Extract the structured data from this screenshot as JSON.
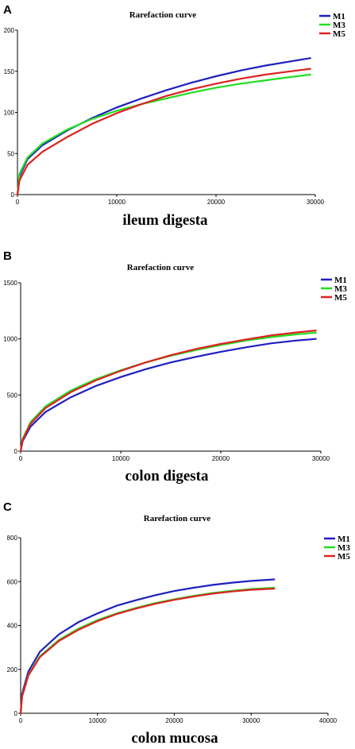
{
  "colors": {
    "M1": "#1f1fbf",
    "M3": "#22dd22",
    "M5": "#dd2222"
  },
  "chart_data": [
    {
      "type": "line",
      "panel": "A",
      "title": "Rarefaction curve",
      "xlabel": "ileum digesta",
      "ylabel": "",
      "xlim": [
        0,
        30000
      ],
      "ylim": [
        0,
        200
      ],
      "xticks": [
        0,
        10000,
        20000,
        30000
      ],
      "yticks": [
        0,
        50,
        100,
        150,
        200
      ],
      "legend_position": "top-right",
      "series": [
        {
          "name": "M1",
          "x": [
            0,
            200,
            1000,
            2500,
            5000,
            7500,
            10000,
            12500,
            15000,
            17500,
            20000,
            22500,
            25000,
            27500,
            29500
          ],
          "values": [
            0,
            22,
            43,
            60,
            78,
            93,
            106,
            117,
            127,
            136,
            144,
            151,
            157,
            162,
            166
          ]
        },
        {
          "name": "M3",
          "x": [
            0,
            200,
            1000,
            2500,
            5000,
            7500,
            10000,
            12500,
            15000,
            17500,
            20000,
            22500,
            25000,
            27500,
            29500
          ],
          "values": [
            0,
            25,
            45,
            62,
            79,
            92,
            102,
            110,
            117,
            124,
            130,
            135,
            139,
            143,
            146
          ]
        },
        {
          "name": "M5",
          "x": [
            0,
            200,
            1000,
            2500,
            5000,
            7500,
            10000,
            12500,
            15000,
            17500,
            20000,
            22500,
            25000,
            27500,
            29500
          ],
          "values": [
            0,
            17,
            36,
            52,
            70,
            86,
            99,
            110,
            120,
            128,
            135,
            141,
            146,
            150,
            153
          ]
        }
      ]
    },
    {
      "type": "line",
      "panel": "B",
      "title": "Rarefaction curve",
      "xlabel": "colon digesta",
      "ylabel": "",
      "xlim": [
        0,
        30000
      ],
      "ylim": [
        0,
        1500
      ],
      "xticks": [
        0,
        10000,
        20000,
        30000
      ],
      "yticks": [
        0,
        500,
        1000,
        1500
      ],
      "legend_position": "top-right",
      "series": [
        {
          "name": "M1",
          "x": [
            0,
            200,
            1000,
            2500,
            5000,
            7500,
            10000,
            12500,
            15000,
            17500,
            20000,
            22500,
            25000,
            27500,
            29500
          ],
          "values": [
            0,
            90,
            220,
            350,
            480,
            580,
            660,
            730,
            790,
            840,
            885,
            925,
            960,
            985,
            1000
          ]
        },
        {
          "name": "M3",
          "x": [
            0,
            200,
            1000,
            2500,
            5000,
            7500,
            10000,
            12500,
            15000,
            17500,
            20000,
            22500,
            25000,
            27500,
            29500
          ],
          "values": [
            0,
            110,
            260,
            400,
            540,
            640,
            720,
            790,
            850,
            900,
            945,
            985,
            1015,
            1040,
            1055
          ]
        },
        {
          "name": "M5",
          "x": [
            0,
            200,
            1000,
            2500,
            5000,
            7500,
            10000,
            12500,
            15000,
            17500,
            20000,
            22500,
            25000,
            27500,
            29500
          ],
          "values": [
            0,
            100,
            245,
            385,
            525,
            630,
            715,
            790,
            855,
            910,
            955,
            995,
            1030,
            1057,
            1075
          ]
        }
      ]
    },
    {
      "type": "line",
      "panel": "C",
      "title": "Rarefaction curve",
      "xlabel": "colon mucosa",
      "ylabel": "",
      "xlim": [
        0,
        40000
      ],
      "ylim": [
        0,
        800
      ],
      "xticks": [
        0,
        10000,
        20000,
        30000,
        40000
      ],
      "yticks": [
        0,
        200,
        400,
        600,
        800
      ],
      "legend_position": "top-right",
      "series": [
        {
          "name": "M1",
          "x": [
            0,
            200,
            1000,
            2500,
            5000,
            7500,
            10000,
            12500,
            15000,
            17500,
            20000,
            22500,
            25000,
            27500,
            30000,
            33000
          ],
          "values": [
            0,
            90,
            190,
            280,
            360,
            415,
            455,
            490,
            515,
            538,
            557,
            572,
            585,
            595,
            603,
            610
          ]
        },
        {
          "name": "M3",
          "x": [
            0,
            200,
            1000,
            2500,
            5000,
            7500,
            10000,
            12500,
            15000,
            17500,
            20000,
            22500,
            25000,
            27500,
            30000,
            33000
          ],
          "values": [
            0,
            80,
            175,
            260,
            335,
            385,
            425,
            455,
            480,
            502,
            520,
            535,
            548,
            558,
            566,
            572
          ]
        },
        {
          "name": "M5",
          "x": [
            0,
            200,
            1000,
            2500,
            5000,
            7500,
            10000,
            12500,
            15000,
            17500,
            20000,
            22500,
            25000,
            27500,
            30000,
            33000
          ],
          "values": [
            0,
            78,
            172,
            256,
            330,
            380,
            420,
            452,
            477,
            499,
            517,
            532,
            545,
            555,
            563,
            568
          ]
        }
      ]
    }
  ]
}
